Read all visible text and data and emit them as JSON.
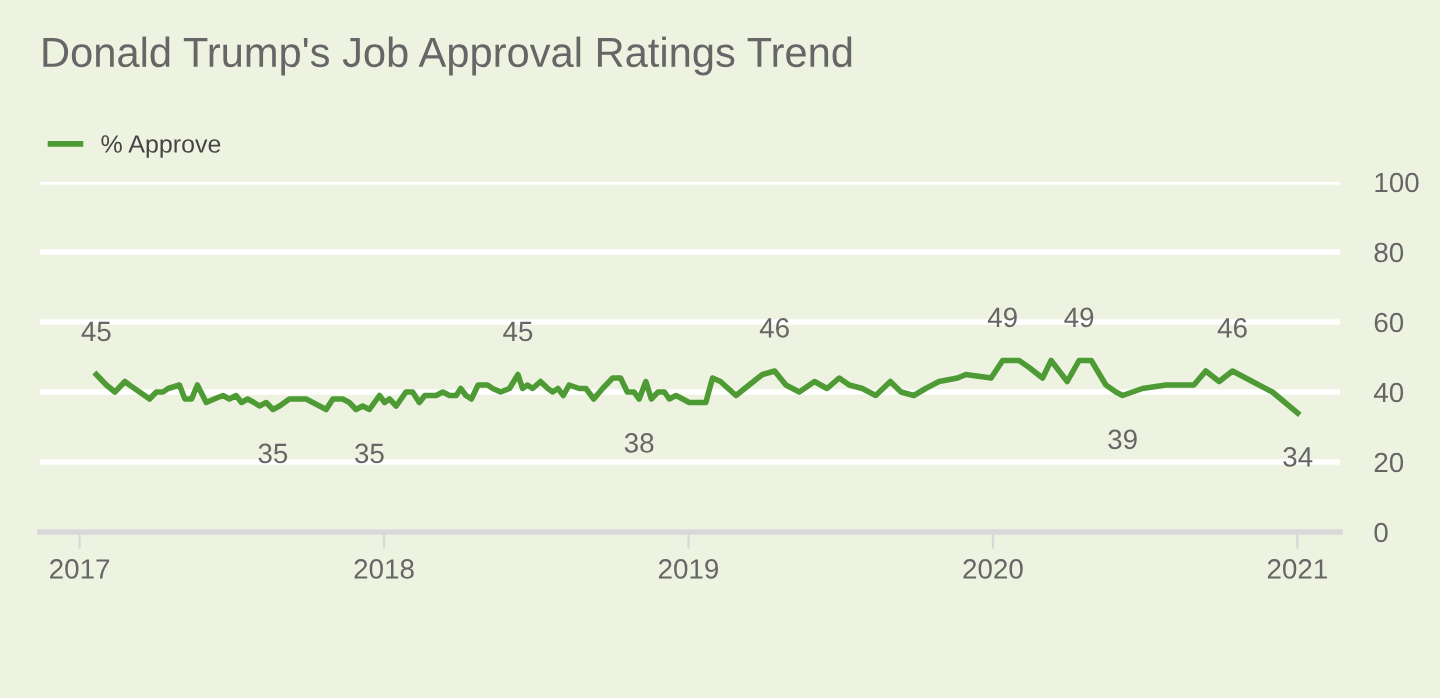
{
  "chart_data": {
    "type": "line",
    "title": "Donald Trump's Job Approval Ratings Trend",
    "x": [
      2017.055,
      2017.088,
      2017.116,
      2017.149,
      2017.164,
      2017.197,
      2017.23,
      2017.252,
      2017.274,
      2017.291,
      2017.328,
      2017.346,
      2017.368,
      2017.387,
      2017.416,
      2017.442,
      2017.471,
      2017.492,
      2017.514,
      2017.532,
      2017.552,
      2017.573,
      2017.591,
      2017.613,
      2017.635,
      2017.657,
      2017.689,
      2017.711,
      2017.744,
      2017.766,
      2017.788,
      2017.81,
      2017.832,
      2017.864,
      2017.886,
      2017.908,
      2017.93,
      2017.952,
      2017.985,
      2018.002,
      2018.018,
      2018.04,
      2018.072,
      2018.094,
      2018.116,
      2018.134,
      2018.171,
      2018.193,
      2018.215,
      2018.237,
      2018.252,
      2018.269,
      2018.287,
      2018.309,
      2018.34,
      2018.357,
      2018.383,
      2018.412,
      2018.44,
      2018.455,
      2018.471,
      2018.488,
      2018.514,
      2018.538,
      2018.554,
      2018.571,
      2018.589,
      2018.608,
      2018.641,
      2018.663,
      2018.689,
      2018.718,
      2018.751,
      2018.777,
      2018.799,
      2018.821,
      2018.838,
      2018.86,
      2018.878,
      2018.9,
      2018.921,
      2018.937,
      2018.959,
      2018.981,
      2019.002,
      2019.057,
      2019.079,
      2019.105,
      2019.156,
      2019.199,
      2019.243,
      2019.283,
      2019.32,
      2019.364,
      2019.414,
      2019.455,
      2019.495,
      2019.528,
      2019.571,
      2019.615,
      2019.663,
      2019.698,
      2019.74,
      2019.779,
      2019.823,
      2019.884,
      2019.911,
      2019.994,
      2020.032,
      2020.086,
      2020.119,
      2020.163,
      2020.191,
      2020.244,
      2020.283,
      2020.323,
      2020.371,
      2020.404,
      2020.426,
      2020.491,
      2020.568,
      2020.66,
      2020.699,
      2020.743,
      2020.787,
      2020.852,
      2020.918,
      2021.001
    ],
    "series": [
      {
        "name": "% Approve",
        "color": "#4e9a34",
        "values": [
          45,
          42,
          40,
          43,
          42,
          40,
          38,
          40,
          40,
          41,
          42,
          38,
          38,
          42,
          37,
          38,
          39,
          38,
          39,
          37,
          38,
          37,
          36,
          37,
          35,
          36,
          38,
          38,
          38,
          37,
          36,
          35,
          38,
          38,
          37,
          35,
          36,
          35,
          39,
          37,
          38,
          36,
          40,
          40,
          37,
          39,
          39,
          40,
          39,
          39,
          41,
          39,
          38,
          42,
          42,
          41,
          40,
          41,
          45,
          41,
          42,
          41,
          43,
          41,
          40,
          41,
          39,
          42,
          41,
          41,
          38,
          41,
          44,
          44,
          40,
          40,
          38,
          43,
          38,
          40,
          40,
          38,
          39,
          38,
          37,
          37,
          44,
          43,
          39,
          42,
          45,
          46,
          42,
          40,
          43,
          41,
          44,
          42,
          41,
          39,
          43,
          40,
          39,
          41,
          43,
          44,
          45,
          44,
          49,
          49,
          47,
          44,
          49,
          43,
          49,
          49,
          42,
          40,
          39,
          41,
          42,
          42,
          46,
          43,
          46,
          43,
          40,
          34
        ]
      }
    ],
    "xlim": [
      2016.87,
      2021.14
    ],
    "xticks": [
      2017,
      2018,
      2019,
      2020,
      2021
    ],
    "ylim": [
      0,
      100
    ],
    "yticks": [
      0,
      20,
      40,
      60,
      80,
      100
    ],
    "grid": "y",
    "legend": "top left",
    "marker": "none",
    "line_style": "solid",
    "annotations": [
      {
        "text": "45",
        "x": 2017.055,
        "y": 45
      },
      {
        "text": "35",
        "x": 2017.635,
        "y": 35
      },
      {
        "text": "35",
        "x": 2017.952,
        "y": 35
      },
      {
        "text": "45",
        "x": 2018.44,
        "y": 45
      },
      {
        "text": "38",
        "x": 2018.838,
        "y": 38
      },
      {
        "text": "46",
        "x": 2019.283,
        "y": 46
      },
      {
        "text": "49",
        "x": 2020.032,
        "y": 49
      },
      {
        "text": "49",
        "x": 2020.283,
        "y": 49
      },
      {
        "text": "39",
        "x": 2020.426,
        "y": 39
      },
      {
        "text": "46",
        "x": 2020.787,
        "y": 46
      },
      {
        "text": "34",
        "x": 2021.001,
        "y": 34
      }
    ]
  }
}
